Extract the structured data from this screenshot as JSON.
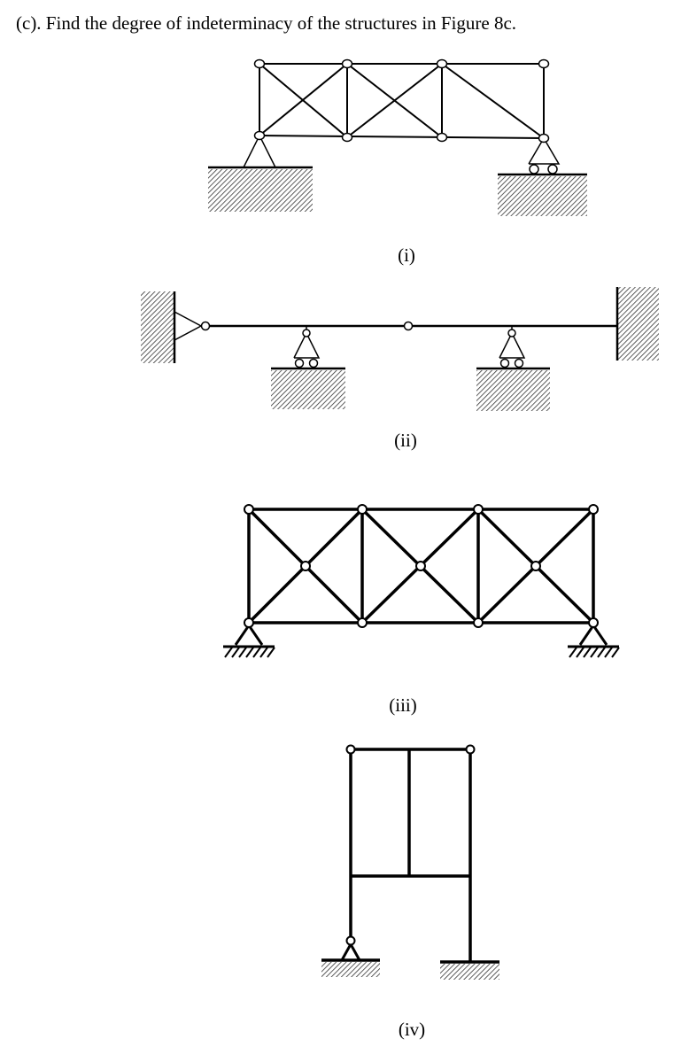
{
  "question": "(c). Find the degree of indeterminacy of the structures in Figure 8c.",
  "figures": [
    {
      "id": "i",
      "caption": "(i)"
    },
    {
      "id": "ii",
      "caption": "(ii)"
    },
    {
      "id": "iii",
      "caption": "(iii)"
    },
    {
      "id": "iv",
      "caption": "(iv)"
    }
  ]
}
